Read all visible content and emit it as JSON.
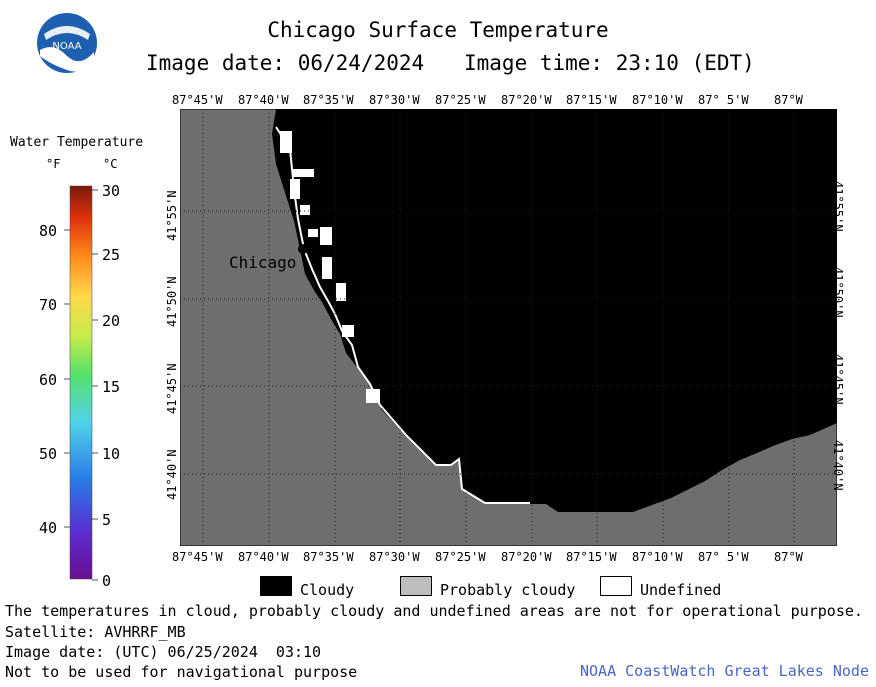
{
  "header": {
    "title": "Chicago Surface Temperature",
    "image_date_label": "Image date: 06/24/2024",
    "image_time_label": "Image time: 23:10 (EDT)",
    "logo_text": "NOAA"
  },
  "map": {
    "city_label": "Chicago",
    "top_lon_labels": [
      "87°45'W",
      "87°40'W",
      "87°35'W",
      "87°30'W",
      "87°25'W",
      "87°20'W",
      "87°15'W",
      "87°10'W",
      "87° 5'W",
      "87°W"
    ],
    "bottom_lon_labels": [
      "87°45'W",
      "87°40'W",
      "87°35'W",
      "87°30'W",
      "87°25'W",
      "87°20'W",
      "87°15'W",
      "87°10'W",
      "87° 5'W",
      "87°W"
    ],
    "left_lat_labels": [
      "41°55'N",
      "41°50'N",
      "41°45'N",
      "41°40'N"
    ],
    "right_lat_labels": [
      "41°55'N",
      "41°50'N",
      "41°45'N",
      "41°40'N"
    ],
    "colors": {
      "land": "#6e6e6e",
      "cloudy": "#000000",
      "undefined": "#ffffff",
      "probably_cloudy": "#bdbdbd"
    }
  },
  "colorbar": {
    "title": "Water Temperature",
    "unit_f": "°F",
    "unit_c": "°C",
    "f_ticks": [
      "80",
      "70",
      "60",
      "50",
      "40"
    ],
    "c_ticks": [
      "30",
      "25",
      "20",
      "15",
      "10",
      "5",
      "0"
    ]
  },
  "legend": {
    "items": [
      {
        "label": "Cloudy",
        "color": "#000000"
      },
      {
        "label": "Probably cloudy",
        "color": "#bdbdbd"
      },
      {
        "label": "Undefined",
        "color": "#ffffff"
      }
    ]
  },
  "footer": {
    "note": "The temperatures in cloud, probably cloudy and undefined areas are not for operational purpose.",
    "satellite": "Satellite: AVHRRF_MB",
    "utc_date": "Image date: (UTC) 06/25/2024  03:10",
    "nav_warning": "Not to be used for navigational purpose",
    "credit": "NOAA CoastWatch Great Lakes Node"
  }
}
